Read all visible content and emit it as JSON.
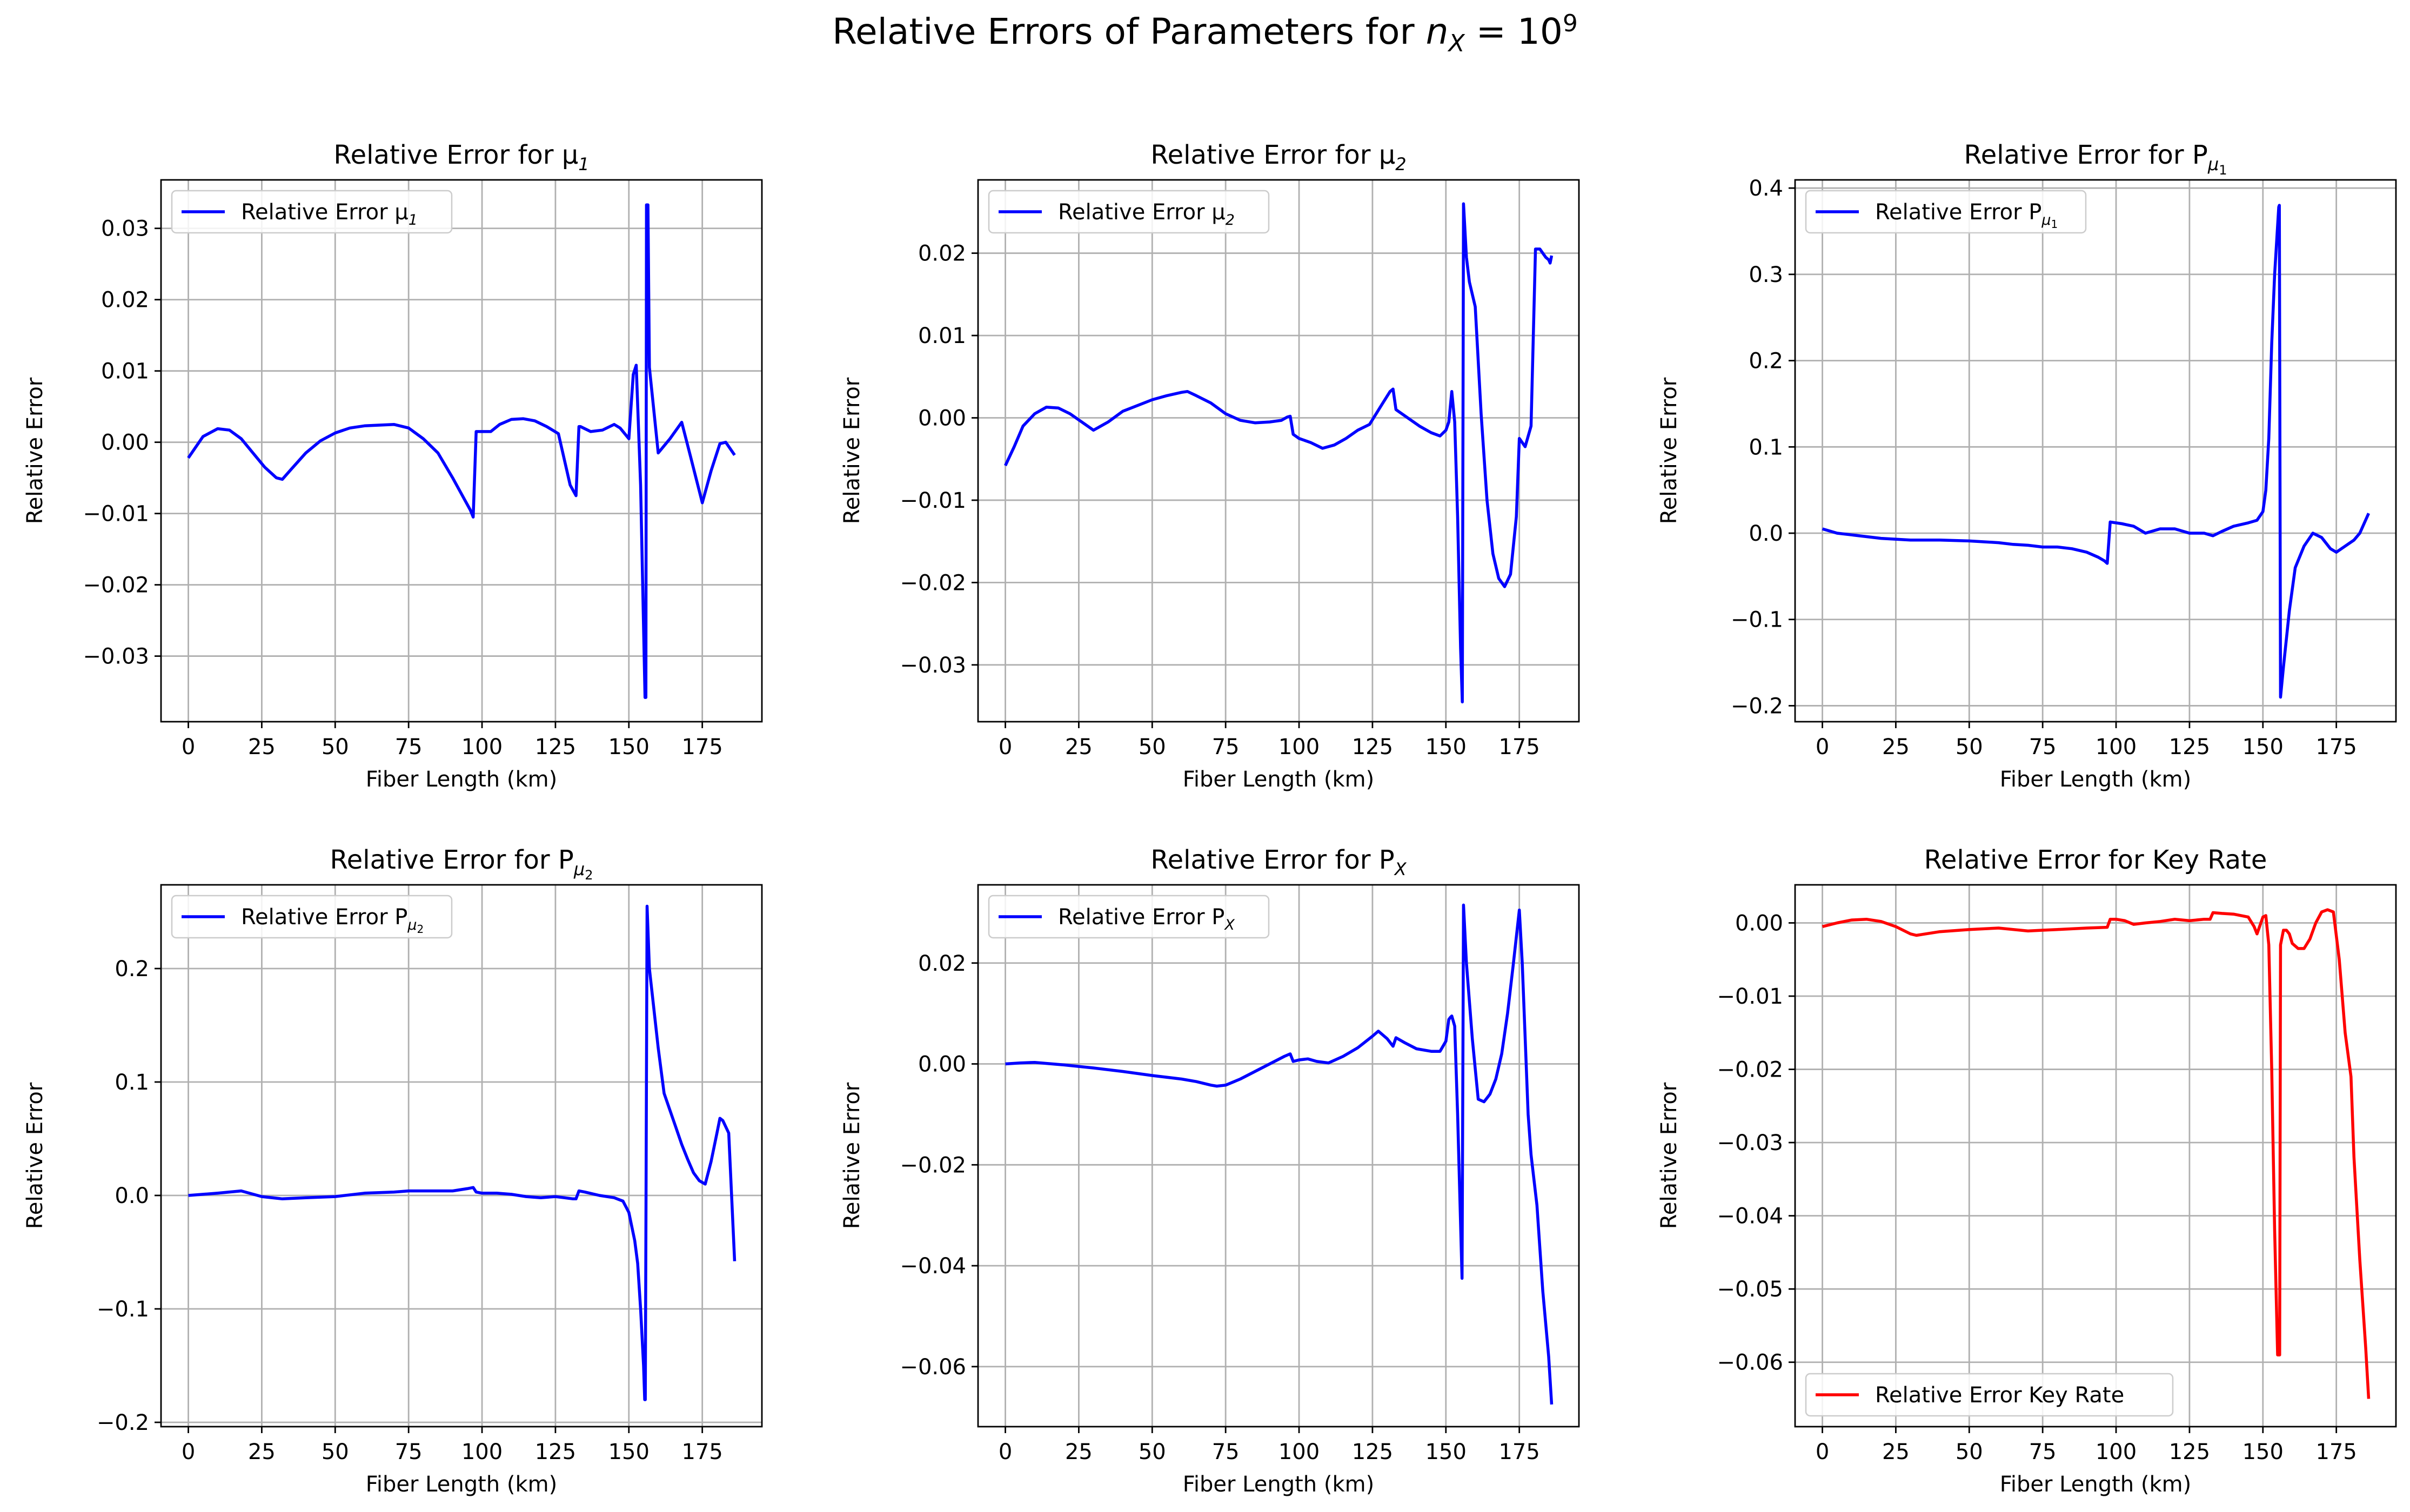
{
  "figure": {
    "title_main": "Relative Errors of Parameters for ",
    "title_math": "n",
    "title_sub": "X",
    "title_eq": " = 10",
    "title_sup": "9"
  },
  "chart_data": [
    {
      "type": "line",
      "title": "Relative Error for μ",
      "title_sub": "1",
      "xlabel": "Fiber Length (km)",
      "ylabel": "Relative Error",
      "xlim": [
        -9.3,
        195.3
      ],
      "ylim": [
        -0.0392,
        0.0368
      ],
      "xticks": [
        0,
        25,
        50,
        75,
        100,
        125,
        150,
        175
      ],
      "yticks": [
        -0.03,
        -0.02,
        -0.01,
        0.0,
        0.01,
        0.02,
        0.03
      ],
      "ytick_labels": [
        "−0.03",
        "−0.02",
        "−0.01",
        "0.00",
        "0.01",
        "0.02",
        "0.03"
      ],
      "grid": true,
      "legend": "upper left",
      "series": [
        {
          "name": "Relative Error μ",
          "name_sub": "1",
          "color": "#0000ff",
          "x": [
            0,
            5,
            10,
            14,
            18,
            22,
            26,
            30,
            32,
            35,
            40,
            45,
            50,
            55,
            60,
            65,
            70,
            75,
            80,
            85,
            90,
            94,
            96,
            97,
            98,
            100,
            103,
            106,
            110,
            114,
            118,
            122,
            126,
            130,
            132,
            133,
            133.5,
            137,
            141,
            145,
            147,
            150,
            151.5,
            152.5,
            154,
            155.5,
            155.8,
            156,
            156.5,
            157,
            160,
            164,
            168,
            171,
            175,
            178,
            181,
            183,
            186
          ],
          "y": [
            -0.0022,
            0.0008,
            0.0019,
            0.0017,
            0.0005,
            -0.0015,
            -0.0035,
            -0.005,
            -0.0052,
            -0.0038,
            -0.0015,
            0.0002,
            0.0013,
            0.002,
            0.0023,
            0.0024,
            0.0025,
            0.002,
            0.0005,
            -0.0015,
            -0.005,
            -0.008,
            -0.0095,
            -0.0105,
            0.0015,
            0.0015,
            0.0015,
            0.0025,
            0.0032,
            0.0033,
            0.003,
            0.0022,
            0.0012,
            -0.006,
            -0.0075,
            0.0022,
            0.0022,
            0.0015,
            0.0017,
            0.0025,
            0.002,
            0.0005,
            0.0095,
            0.0108,
            -0.006,
            -0.0358,
            -0.0358,
            0.0333,
            0.0333,
            0.0105,
            -0.0015,
            0.0005,
            0.0028,
            -0.002,
            -0.0085,
            -0.004,
            -0.0002,
            0.0,
            -0.0018
          ]
        }
      ]
    },
    {
      "type": "line",
      "title": "Relative Error for μ",
      "title_sub": "2",
      "xlabel": "Fiber Length (km)",
      "ylabel": "Relative Error",
      "xlim": [
        -9.3,
        195.3
      ],
      "ylim": [
        -0.0369,
        0.0289
      ],
      "xticks": [
        0,
        25,
        50,
        75,
        100,
        125,
        150,
        175
      ],
      "yticks": [
        -0.03,
        -0.02,
        -0.01,
        0.0,
        0.01,
        0.02
      ],
      "ytick_labels": [
        "−0.03",
        "−0.02",
        "−0.01",
        "0.00",
        "0.01",
        "0.02"
      ],
      "grid": true,
      "legend": "upper left",
      "series": [
        {
          "name": "Relative Error μ",
          "name_sub": "2",
          "color": "#0000ff",
          "x": [
            0,
            3,
            6,
            10,
            14,
            18,
            22,
            26,
            30,
            35,
            40,
            45,
            50,
            55,
            60,
            62,
            65,
            70,
            75,
            80,
            85,
            90,
            94,
            96,
            97,
            98,
            100,
            104,
            108,
            112,
            116,
            120,
            124,
            128,
            131,
            132,
            133,
            137,
            141,
            145,
            148,
            150,
            151,
            152,
            153,
            154,
            155,
            155.6,
            156,
            157,
            158,
            160,
            162,
            164,
            166,
            168,
            170,
            172,
            174,
            175,
            177,
            179,
            180.5,
            181,
            182,
            184,
            185,
            185.5,
            186
          ],
          "y": [
            -0.0058,
            -0.0035,
            -0.001,
            0.0005,
            0.0013,
            0.0012,
            0.0005,
            -0.0005,
            -0.0015,
            -0.0005,
            0.0008,
            0.0015,
            0.0022,
            0.0027,
            0.0031,
            0.0032,
            0.0027,
            0.0018,
            0.0005,
            -0.0003,
            -0.0006,
            -0.0005,
            -0.0003,
            0.0001,
            0.0002,
            -0.002,
            -0.0025,
            -0.003,
            -0.0037,
            -0.0033,
            -0.0025,
            -0.0015,
            -0.0008,
            0.0015,
            0.0032,
            0.0035,
            0.001,
            0.0,
            -0.001,
            -0.0018,
            -0.0022,
            -0.0015,
            -0.0005,
            0.0032,
            -0.0005,
            -0.012,
            -0.028,
            -0.0345,
            0.026,
            0.0195,
            0.0165,
            0.0135,
            0.0005,
            -0.01,
            -0.0165,
            -0.0195,
            -0.0205,
            -0.019,
            -0.012,
            -0.0025,
            -0.0035,
            -0.001,
            0.0205,
            0.0205,
            0.0205,
            0.0195,
            0.0192,
            0.0188,
            0.0197
          ]
        }
      ]
    },
    {
      "type": "line",
      "title": "Relative Error for P",
      "title_sub": "μ",
      "title_subsub": "1",
      "xlabel": "Fiber Length (km)",
      "ylabel": "Relative Error",
      "xlim": [
        -9.3,
        195.3
      ],
      "ylim": [
        -0.2185,
        0.4095
      ],
      "xticks": [
        0,
        25,
        50,
        75,
        100,
        125,
        150,
        175
      ],
      "yticks": [
        -0.2,
        -0.1,
        0.0,
        0.1,
        0.2,
        0.3,
        0.4
      ],
      "ytick_labels": [
        "−0.2",
        "−0.1",
        "0.0",
        "0.1",
        "0.2",
        "0.3",
        "0.4"
      ],
      "grid": true,
      "legend": "upper left",
      "series": [
        {
          "name": "Relative Error P",
          "name_sub": "μ",
          "name_subsub": "1",
          "color": "#0000ff",
          "x": [
            0,
            5,
            10,
            20,
            30,
            40,
            50,
            60,
            65,
            70,
            75,
            80,
            85,
            90,
            94,
            96,
            97,
            98,
            102,
            106,
            110,
            115,
            120,
            125,
            130,
            133,
            136,
            140,
            145,
            148,
            150,
            151,
            152,
            153,
            154,
            155.4,
            155.6,
            156,
            157,
            159,
            161,
            164,
            167,
            170,
            173,
            175,
            178,
            181,
            183,
            186
          ],
          "y": [
            0.005,
            0.0,
            -0.002,
            -0.006,
            -0.008,
            -0.008,
            -0.009,
            -0.011,
            -0.013,
            -0.014,
            -0.016,
            -0.016,
            -0.018,
            -0.022,
            -0.028,
            -0.032,
            -0.035,
            0.013,
            0.011,
            0.008,
            0.0,
            0.005,
            0.005,
            0.0,
            0.0,
            -0.003,
            0.002,
            0.008,
            0.012,
            0.015,
            0.025,
            0.05,
            0.11,
            0.22,
            0.3,
            0.378,
            0.38,
            -0.19,
            -0.155,
            -0.09,
            -0.04,
            -0.015,
            0.0,
            -0.005,
            -0.018,
            -0.022,
            -0.015,
            -0.008,
            0.0,
            0.023
          ]
        }
      ]
    },
    {
      "type": "line",
      "title": "Relative Error for P",
      "title_sub": "μ",
      "title_subsub": "2",
      "xlabel": "Fiber Length (km)",
      "ylabel": "Relative Error",
      "xlim": [
        -9.3,
        195.3
      ],
      "ylim": [
        -0.2038,
        0.2738
      ],
      "xticks": [
        0,
        25,
        50,
        75,
        100,
        125,
        150,
        175
      ],
      "yticks": [
        -0.2,
        -0.1,
        0.0,
        0.1,
        0.2
      ],
      "ytick_labels": [
        "−0.2",
        "−0.1",
        "0.0",
        "0.1",
        "0.2"
      ],
      "grid": true,
      "legend": "upper left",
      "series": [
        {
          "name": "Relative Error P",
          "name_sub": "μ",
          "name_subsub": "2",
          "color": "#0000ff",
          "x": [
            0,
            5,
            10,
            18,
            25,
            32,
            40,
            50,
            60,
            70,
            75,
            80,
            90,
            95,
            97,
            98,
            100,
            105,
            110,
            115,
            120,
            125,
            128,
            131,
            132,
            133,
            135,
            140,
            145,
            148,
            150,
            152,
            153,
            154,
            155,
            155.4,
            155.6,
            156.2,
            157,
            160,
            162,
            164,
            166,
            168,
            170,
            172,
            174,
            176,
            178,
            180,
            181,
            182,
            184,
            186
          ],
          "y": [
            0.0,
            0.001,
            0.002,
            0.004,
            -0.001,
            -0.003,
            -0.002,
            -0.001,
            0.002,
            0.003,
            0.004,
            0.004,
            0.004,
            0.006,
            0.007,
            0.003,
            0.002,
            0.002,
            0.001,
            -0.001,
            -0.002,
            -0.001,
            -0.002,
            -0.003,
            -0.003,
            0.004,
            0.003,
            0.0,
            -0.002,
            -0.005,
            -0.015,
            -0.04,
            -0.06,
            -0.1,
            -0.15,
            -0.18,
            -0.18,
            0.255,
            0.2,
            0.13,
            0.09,
            0.075,
            0.06,
            0.045,
            0.032,
            0.02,
            0.013,
            0.01,
            0.03,
            0.055,
            0.068,
            0.066,
            0.055,
            -0.058
          ]
        }
      ]
    },
    {
      "type": "line",
      "title": "Relative Error for P",
      "title_sub": "X",
      "xlabel": "Fiber Length (km)",
      "ylabel": "Relative Error",
      "xlim": [
        -9.3,
        195.3
      ],
      "ylim": [
        -0.0719,
        0.0355
      ],
      "xticks": [
        0,
        25,
        50,
        75,
        100,
        125,
        150,
        175
      ],
      "yticks": [
        -0.06,
        -0.04,
        -0.02,
        0.0,
        0.02
      ],
      "ytick_labels": [
        "−0.06",
        "−0.04",
        "−0.02",
        "0.00",
        "0.02"
      ],
      "grid": true,
      "legend": "upper left",
      "series": [
        {
          "name": "Relative Error P",
          "name_sub": "X",
          "color": "#0000ff",
          "x": [
            0,
            5,
            10,
            20,
            30,
            40,
            50,
            60,
            65,
            70,
            72,
            75,
            80,
            85,
            90,
            95,
            97,
            98,
            100,
            103,
            106,
            110,
            115,
            120,
            125,
            127,
            130,
            132,
            133,
            136,
            140,
            145,
            148,
            150,
            151,
            151.5,
            152,
            153,
            154,
            155.5,
            156,
            157,
            159,
            161,
            163,
            165,
            167,
            169,
            171,
            173,
            175,
            176,
            178,
            179,
            181,
            183,
            185,
            186
          ],
          "y": [
            0.0,
            0.0002,
            0.0003,
            -0.0002,
            -0.0008,
            -0.0015,
            -0.0023,
            -0.003,
            -0.0035,
            -0.0042,
            -0.0044,
            -0.0042,
            -0.003,
            -0.0015,
            0.0,
            0.0015,
            0.002,
            0.0005,
            0.0008,
            0.001,
            0.0005,
            0.0002,
            0.0015,
            0.0032,
            0.0055,
            0.0065,
            0.005,
            0.0035,
            0.0052,
            0.0042,
            0.003,
            0.0025,
            0.0025,
            0.0045,
            0.0088,
            0.0092,
            0.0095,
            0.0075,
            -0.01,
            -0.0425,
            0.0315,
            0.02,
            0.005,
            -0.007,
            -0.0075,
            -0.006,
            -0.003,
            0.002,
            0.01,
            0.02,
            0.0305,
            0.02,
            -0.01,
            -0.018,
            -0.028,
            -0.045,
            -0.058,
            -0.0675
          ]
        }
      ]
    },
    {
      "type": "line",
      "title": "Relative Error for Key Rate",
      "xlabel": "Fiber Length (km)",
      "ylabel": "Relative Error",
      "xlim": [
        -9.3,
        195.3
      ],
      "ylim": [
        -0.0688,
        0.0052
      ],
      "xticks": [
        0,
        25,
        50,
        75,
        100,
        125,
        150,
        175
      ],
      "yticks": [
        -0.06,
        -0.05,
        -0.04,
        -0.03,
        -0.02,
        -0.01,
        0.0
      ],
      "ytick_labels": [
        "−0.06",
        "−0.05",
        "−0.04",
        "−0.03",
        "−0.02",
        "−0.01",
        "0.00"
      ],
      "grid": true,
      "legend": "lower left",
      "series": [
        {
          "name": "Relative Error Key Rate",
          "color": "#ff0000",
          "x": [
            0,
            5,
            10,
            15,
            20,
            25,
            30,
            32,
            40,
            50,
            60,
            65,
            70,
            75,
            80,
            90,
            97,
            98,
            100,
            103,
            106,
            110,
            115,
            120,
            125,
            130,
            132,
            133,
            136,
            140,
            145,
            147,
            148,
            150,
            151,
            152,
            153,
            154,
            155,
            155.5,
            155.7,
            156,
            157,
            158,
            159,
            160,
            162,
            164,
            166,
            168,
            170,
            172,
            174,
            176,
            178,
            180,
            181,
            183,
            185,
            186
          ],
          "y": [
            -0.0005,
            0.0,
            0.0004,
            0.0005,
            0.0002,
            -0.0005,
            -0.0015,
            -0.0017,
            -0.0012,
            -0.0009,
            -0.0007,
            -0.0009,
            -0.0011,
            -0.001,
            -0.0009,
            -0.0007,
            -0.0006,
            0.0005,
            0.0005,
            0.0003,
            -0.0002,
            0.0,
            0.0002,
            0.0005,
            0.0003,
            0.0005,
            0.0005,
            0.0014,
            0.0013,
            0.0012,
            0.0008,
            -0.0005,
            -0.0015,
            0.0008,
            0.001,
            -0.003,
            -0.02,
            -0.042,
            -0.059,
            -0.059,
            -0.059,
            -0.003,
            -0.001,
            -0.001,
            -0.0015,
            -0.0028,
            -0.0035,
            -0.0035,
            -0.0022,
            0.0,
            0.0015,
            0.0018,
            0.0015,
            -0.005,
            -0.015,
            -0.021,
            -0.032,
            -0.046,
            -0.058,
            -0.065
          ]
        }
      ]
    }
  ]
}
